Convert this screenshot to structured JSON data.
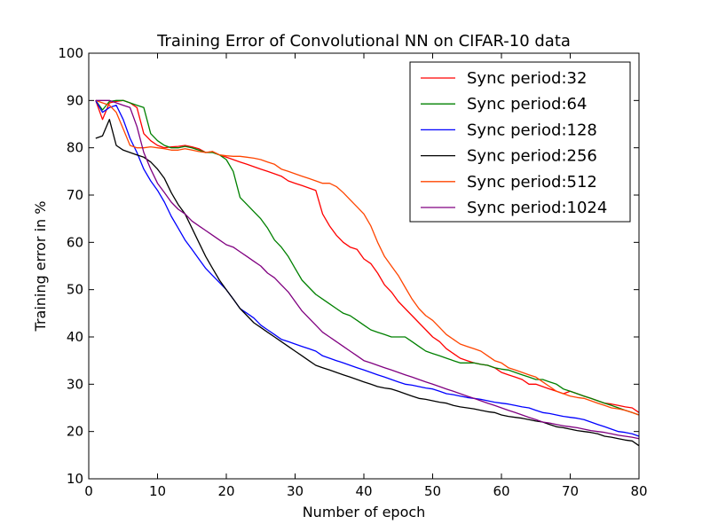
{
  "chart_data": {
    "type": "line",
    "title": "Training Error of Convolutional NN on CIFAR-10 data",
    "xlabel": "Number of epoch",
    "ylabel": "Training error in %",
    "xlim": [
      0,
      80
    ],
    "ylim": [
      10,
      100
    ],
    "xticks": [
      "0",
      "10",
      "20",
      "30",
      "40",
      "50",
      "60",
      "70",
      "80"
    ],
    "yticks": [
      "10",
      "20",
      "30",
      "40",
      "50",
      "60",
      "70",
      "80",
      "90",
      "100"
    ],
    "grid": false,
    "legend_position": "top-right",
    "x": [
      1,
      2,
      3,
      4,
      5,
      6,
      7,
      8,
      9,
      10,
      11,
      12,
      13,
      14,
      15,
      16,
      17,
      18,
      19,
      20,
      21,
      22,
      23,
      24,
      25,
      26,
      27,
      28,
      29,
      30,
      31,
      32,
      33,
      34,
      35,
      36,
      37,
      38,
      39,
      40,
      41,
      42,
      43,
      44,
      45,
      46,
      47,
      48,
      49,
      50,
      51,
      52,
      53,
      54,
      55,
      56,
      57,
      58,
      59,
      60,
      61,
      62,
      63,
      64,
      65,
      66,
      67,
      68,
      69,
      70,
      71,
      72,
      73,
      74,
      75,
      76,
      77,
      78,
      79,
      80
    ],
    "series": [
      {
        "name": "Sync period:32",
        "color": "#ff0000",
        "values": [
          90.0,
          86.0,
          89.5,
          89.8,
          90.0,
          89.5,
          88.5,
          83.0,
          81.5,
          80.5,
          80.0,
          80.2,
          80.3,
          80.5,
          80.2,
          79.8,
          79.0,
          79.2,
          78.5,
          78.0,
          77.5,
          77.0,
          76.5,
          76.0,
          75.5,
          75.0,
          74.5,
          74.0,
          73.0,
          72.5,
          72.0,
          71.5,
          71.0,
          66.0,
          63.5,
          61.5,
          60.0,
          59.0,
          58.5,
          56.5,
          55.5,
          53.5,
          51.0,
          49.5,
          47.5,
          46.0,
          44.5,
          43.0,
          41.5,
          40.0,
          39.0,
          37.5,
          36.5,
          35.5,
          35.0,
          34.5,
          34.2,
          34.0,
          33.5,
          32.5,
          32.0,
          31.5,
          31.0,
          30.0,
          30.0,
          29.5,
          29.0,
          28.5,
          28.0,
          28.5,
          28.0,
          27.5,
          27.0,
          26.5,
          26.0,
          25.8,
          25.5,
          25.2,
          25.0,
          24.0
        ]
      },
      {
        "name": "Sync period:64",
        "color": "#008000",
        "values": [
          90.0,
          88.0,
          89.8,
          90.0,
          90.0,
          89.5,
          89.0,
          88.5,
          83.0,
          81.5,
          80.5,
          80.0,
          80.0,
          80.3,
          80.0,
          79.5,
          79.0,
          79.0,
          78.5,
          77.5,
          75.0,
          69.5,
          68.0,
          66.5,
          65.0,
          63.0,
          60.5,
          59.0,
          57.0,
          54.5,
          52.0,
          50.5,
          49.0,
          48.0,
          47.0,
          46.0,
          45.0,
          44.5,
          43.5,
          42.5,
          41.5,
          41.0,
          40.5,
          40.0,
          40.0,
          40.0,
          39.0,
          38.0,
          37.0,
          36.5,
          36.0,
          35.5,
          35.0,
          34.5,
          34.5,
          34.5,
          34.2,
          34.0,
          33.5,
          33.2,
          33.0,
          32.5,
          32.0,
          31.5,
          31.0,
          31.0,
          30.5,
          30.0,
          29.0,
          28.5,
          28.0,
          27.5,
          27.0,
          26.5,
          26.0,
          25.5,
          25.0,
          24.5,
          24.0,
          23.5
        ]
      },
      {
        "name": "Sync period:128",
        "color": "#0000ff",
        "values": [
          90.0,
          87.5,
          88.5,
          89.0,
          86.0,
          82.0,
          79.0,
          75.5,
          73.0,
          71.0,
          68.5,
          65.5,
          63.0,
          60.5,
          58.5,
          56.5,
          54.5,
          53.0,
          51.5,
          50.0,
          48.0,
          46.0,
          45.0,
          44.0,
          42.5,
          41.5,
          40.5,
          39.5,
          39.0,
          38.5,
          38.0,
          37.5,
          37.0,
          36.0,
          35.5,
          35.0,
          34.5,
          34.0,
          33.5,
          33.0,
          32.5,
          32.0,
          31.5,
          31.0,
          30.5,
          30.0,
          29.8,
          29.5,
          29.2,
          29.0,
          28.5,
          28.0,
          27.8,
          27.5,
          27.2,
          27.0,
          26.8,
          26.5,
          26.2,
          26.0,
          25.8,
          25.5,
          25.2,
          25.0,
          24.5,
          24.0,
          23.8,
          23.5,
          23.2,
          23.0,
          22.8,
          22.5,
          22.0,
          21.5,
          21.0,
          20.5,
          20.0,
          19.8,
          19.5,
          19.0
        ]
      },
      {
        "name": "Sync period:256",
        "color": "#000000",
        "values": [
          82.0,
          82.5,
          86.0,
          80.5,
          79.5,
          79.0,
          78.5,
          78.0,
          77.0,
          75.5,
          73.5,
          70.5,
          68.0,
          66.0,
          63.0,
          60.0,
          57.0,
          54.5,
          52.0,
          50.0,
          48.0,
          46.0,
          44.5,
          43.0,
          42.0,
          41.0,
          40.0,
          39.0,
          38.0,
          37.0,
          36.0,
          35.0,
          34.0,
          33.5,
          33.0,
          32.5,
          32.0,
          31.5,
          31.0,
          30.5,
          30.0,
          29.5,
          29.2,
          29.0,
          28.5,
          28.0,
          27.5,
          27.0,
          26.8,
          26.5,
          26.2,
          26.0,
          25.5,
          25.2,
          25.0,
          24.8,
          24.5,
          24.2,
          24.0,
          23.5,
          23.2,
          23.0,
          22.8,
          22.5,
          22.2,
          22.0,
          21.5,
          21.0,
          20.8,
          20.5,
          20.2,
          20.0,
          19.8,
          19.5,
          19.0,
          18.8,
          18.5,
          18.2,
          18.0,
          17.0
        ]
      },
      {
        "name": "Sync period:512",
        "color": "#ff4500",
        "values": [
          90.0,
          89.5,
          89.0,
          87.5,
          84.0,
          80.5,
          80.0,
          80.0,
          80.2,
          80.0,
          79.8,
          79.5,
          79.5,
          79.8,
          79.5,
          79.2,
          79.0,
          79.2,
          78.5,
          78.3,
          78.2,
          78.2,
          78.0,
          77.8,
          77.5,
          77.0,
          76.5,
          75.5,
          75.0,
          74.5,
          74.0,
          73.5,
          73.0,
          72.5,
          72.5,
          71.8,
          70.5,
          69.0,
          67.5,
          66.0,
          63.5,
          60.0,
          57.0,
          55.0,
          53.0,
          50.5,
          48.0,
          46.0,
          44.5,
          43.5,
          42.0,
          40.5,
          39.5,
          38.5,
          38.0,
          37.5,
          37.0,
          36.0,
          35.0,
          34.5,
          33.5,
          33.0,
          32.5,
          32.0,
          31.5,
          30.5,
          29.5,
          28.5,
          28.0,
          27.5,
          27.2,
          27.0,
          26.5,
          26.0,
          25.5,
          25.0,
          24.8,
          24.5,
          24.0,
          23.5
        ]
      },
      {
        "name": "Sync period:1024",
        "color": "#800080",
        "values": [
          90.0,
          90.0,
          90.0,
          89.5,
          89.0,
          88.5,
          84.5,
          79.0,
          75.5,
          72.5,
          70.5,
          68.5,
          67.0,
          66.0,
          64.5,
          63.5,
          62.5,
          61.5,
          60.5,
          59.5,
          59.0,
          58.0,
          57.0,
          56.0,
          55.0,
          53.5,
          52.5,
          51.0,
          49.5,
          47.5,
          45.5,
          44.0,
          42.5,
          41.0,
          40.0,
          39.0,
          38.0,
          37.0,
          36.0,
          35.0,
          34.5,
          34.0,
          33.5,
          33.0,
          32.5,
          32.0,
          31.5,
          31.0,
          30.5,
          30.0,
          29.5,
          29.0,
          28.5,
          28.0,
          27.5,
          27.0,
          26.5,
          26.0,
          25.5,
          25.0,
          24.5,
          24.0,
          23.5,
          23.0,
          22.5,
          22.0,
          21.8,
          21.5,
          21.2,
          21.0,
          20.8,
          20.5,
          20.2,
          20.0,
          19.8,
          19.5,
          19.2,
          19.0,
          18.8,
          18.5
        ]
      }
    ]
  }
}
